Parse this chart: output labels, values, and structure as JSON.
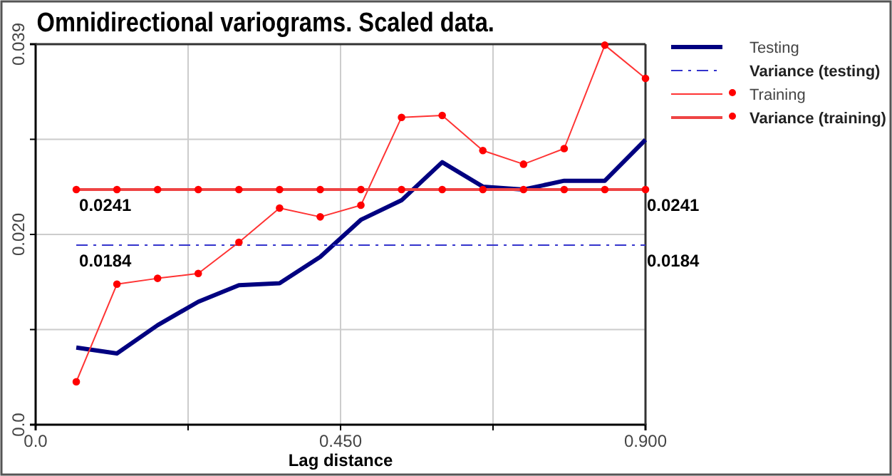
{
  "chart_data": {
    "type": "line",
    "title": "Omnidirectional variograms. Scaled data.",
    "xlabel": "Lag distance",
    "x": [
      0.06,
      0.12,
      0.18,
      0.24,
      0.3,
      0.36,
      0.42,
      0.48,
      0.54,
      0.6,
      0.66,
      0.72,
      0.78,
      0.84,
      0.9
    ],
    "series": [
      {
        "name": "Testing",
        "color": "#000080",
        "marker": "none",
        "values": [
          0.0079,
          0.0073,
          0.0102,
          0.0126,
          0.0143,
          0.0145,
          0.0172,
          0.021,
          0.023,
          0.0269,
          0.0244,
          0.0241,
          0.025,
          0.025,
          0.0292
        ]
      },
      {
        "name": "Variance (testing)",
        "color": "#3333cc",
        "marker": "none",
        "line_style": "dashed",
        "x": [
          0.06,
          0.9
        ],
        "values": [
          0.0184,
          0.0184
        ],
        "value_labels": [
          "0.0184",
          "0.0184"
        ]
      },
      {
        "name": "Training",
        "color": "#ff3333",
        "marker": "circle",
        "values": [
          0.0044,
          0.0144,
          0.015,
          0.0155,
          0.0187,
          0.0222,
          0.0213,
          0.0225,
          0.0315,
          0.0317,
          0.0281,
          0.0267,
          0.0283,
          0.0389,
          0.0355
        ]
      },
      {
        "name": "Variance (training)",
        "color": "#ee4444",
        "marker": "circle",
        "values": [
          0.0241,
          0.0241,
          0.0241,
          0.0241,
          0.0241,
          0.0241,
          0.0241,
          0.0241,
          0.0241,
          0.0241,
          0.0241,
          0.0241,
          0.0241,
          0.0241,
          0.0241
        ],
        "value_labels": [
          "0.0241",
          null,
          null,
          null,
          null,
          null,
          null,
          null,
          null,
          null,
          null,
          null,
          null,
          null,
          "0.0241"
        ]
      }
    ],
    "xlim": [
      0,
      0.9
    ],
    "xticks": [
      {
        "value": 0,
        "label": "0.0"
      },
      {
        "value": 0.225,
        "label": null
      },
      {
        "value": 0.45,
        "label": "0.450"
      },
      {
        "value": 0.675,
        "label": null
      },
      {
        "value": 0.9,
        "label": "0.900"
      }
    ],
    "ylim": [
      0,
      0.039
    ],
    "yticks": [
      {
        "value": 0,
        "label": "0.0"
      },
      {
        "value": 0.00975,
        "label": null
      },
      {
        "value": 0.0195,
        "label": "0.020"
      },
      {
        "value": 0.02925,
        "label": null
      },
      {
        "value": 0.039,
        "label": "0.039"
      }
    ],
    "grid": true,
    "legend": "right"
  }
}
